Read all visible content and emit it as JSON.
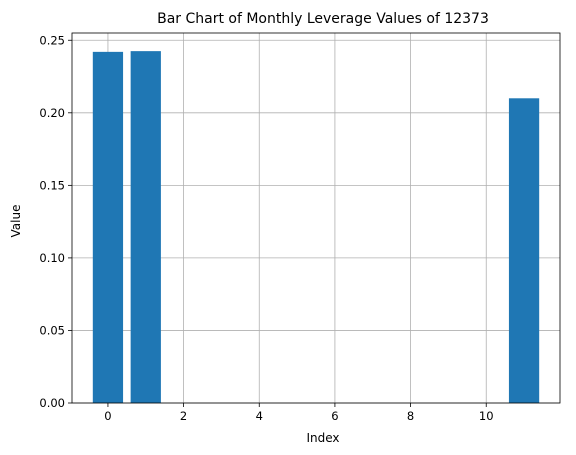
{
  "chart_data": {
    "type": "bar",
    "title": "Bar Chart of Monthly Leverage Values of 12373",
    "xlabel": "Index",
    "ylabel": "Value",
    "x": [
      0,
      1,
      2,
      3,
      4,
      5,
      6,
      7,
      8,
      9,
      10,
      11
    ],
    "values": [
      0.242,
      0.2425,
      0,
      0,
      0,
      0,
      0,
      0,
      0,
      0,
      0,
      0.21
    ],
    "xlim": [
      -0.95,
      11.95
    ],
    "ylim": [
      0,
      0.255
    ],
    "xticks": [
      0,
      2,
      4,
      6,
      8,
      10
    ],
    "yticks": [
      0.0,
      0.05,
      0.1,
      0.15,
      0.2,
      0.25
    ],
    "ytick_labels": [
      "0.00",
      "0.05",
      "0.10",
      "0.15",
      "0.20",
      "0.25"
    ],
    "grid": true,
    "bar_color": "#1f77b4"
  }
}
